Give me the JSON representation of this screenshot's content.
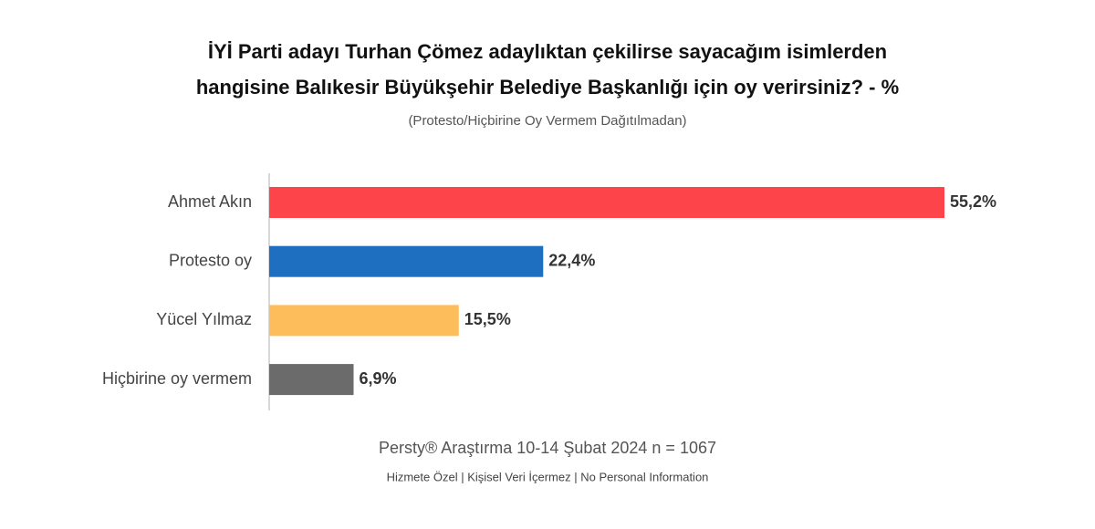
{
  "chart_data": {
    "type": "barh",
    "title": [
      "İYİ Parti adayı Turhan Çömez adaylıktan çekilirse sayacağım isimlerden",
      "hangisine Balıkesir Büyükşehir Belediye Başkanlığı için oy verirsiniz? - %"
    ],
    "subtitle": "(Protesto/Hiçbirine Oy Vermem Dağıtılmadan)",
    "categories": [
      "Ahmet Akın",
      "Protesto oy",
      "Yücel Yılmaz",
      "Hiçbirine oy vermem"
    ],
    "values": [
      55.2,
      22.4,
      15.5,
      6.9
    ],
    "value_labels": [
      "55,2%",
      "22,4%",
      "15,5%",
      "6,9%"
    ],
    "colors": [
      "#fc444a",
      "#1f6fc1",
      "#fdbd5a",
      "#6b6b6b"
    ],
    "source": "Persty® Araştırma 10-14 Şubat 2024 n = 1067",
    "footnote": "Hizmete Özel | Kişisel Veri İçermez | No Personal Information"
  }
}
